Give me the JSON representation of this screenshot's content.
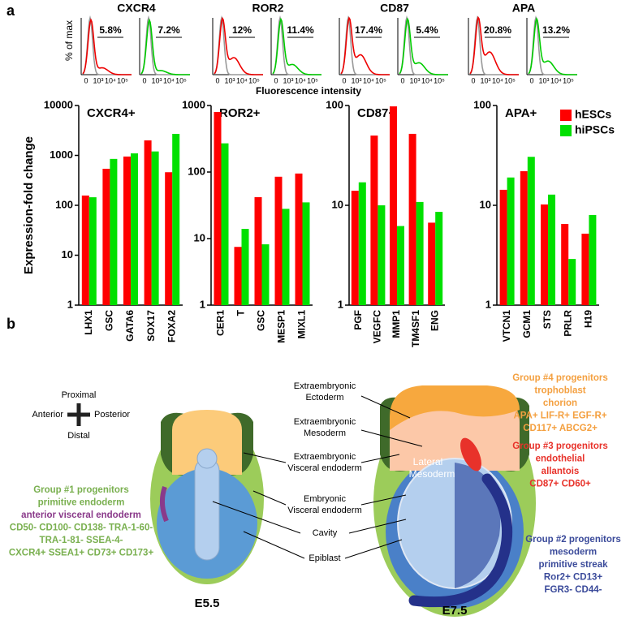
{
  "panel_a": {
    "label": "a",
    "y_label": "% of max",
    "x_label": "Fluorescence intensity",
    "x_ticks": [
      "0",
      "10³",
      "10⁴",
      "10⁵"
    ],
    "histograms": [
      {
        "title": "CXCR4",
        "gates": [
          "5.8%",
          "7.2%"
        ]
      },
      {
        "title": "ROR2",
        "gates": [
          "12%",
          "11.4%"
        ]
      },
      {
        "title": "CD87",
        "gates": [
          "17.4%",
          "5.4%"
        ]
      },
      {
        "title": "APA",
        "gates": [
          "20.8%",
          "13.2%"
        ]
      }
    ]
  },
  "chart_data": [
    {
      "type": "bar",
      "title": "CXCR4+",
      "y_label": "Expression-fold change",
      "log": true,
      "categories": [
        "LHX1",
        "GSC",
        "GATA6",
        "SOX17",
        "FOXA2"
      ],
      "series": [
        {
          "name": "hESCs",
          "color": "#ff0000",
          "values": [
            157,
            540,
            950,
            2000,
            460
          ]
        },
        {
          "name": "hiPSCs",
          "color": "#00e000",
          "values": [
            145,
            850,
            1100,
            1200,
            2700
          ]
        }
      ],
      "ylim": [
        1,
        10000
      ],
      "yticks": [
        1,
        10,
        100,
        1000,
        10000
      ]
    },
    {
      "type": "bar",
      "title": "ROR2+",
      "log": true,
      "categories": [
        "CER1",
        "T",
        "GSC",
        "MESP1",
        "MIXL1"
      ],
      "series": [
        {
          "name": "hESCs",
          "color": "#ff0000",
          "values": [
            800,
            7.5,
            42,
            85,
            95
          ]
        },
        {
          "name": "hiPSCs",
          "color": "#00e000",
          "values": [
            270,
            14,
            8.2,
            28,
            35
          ]
        }
      ],
      "ylim": [
        1,
        1000
      ],
      "yticks": [
        1,
        10,
        100,
        1000
      ]
    },
    {
      "type": "bar",
      "title": "CD87+",
      "log": true,
      "categories": [
        "PGF",
        "VEGFC",
        "MMP1",
        "TM4SF1",
        "ENG"
      ],
      "series": [
        {
          "name": "hESCs",
          "color": "#ff0000",
          "values": [
            14,
            50,
            98,
            52,
            6.7
          ]
        },
        {
          "name": "hiPSCs",
          "color": "#00e000",
          "values": [
            17,
            10,
            6.2,
            10.8,
            8.6
          ]
        }
      ],
      "ylim": [
        1,
        100
      ],
      "yticks": [
        1,
        10,
        100
      ]
    },
    {
      "type": "bar",
      "title": "APA+",
      "log": true,
      "legend": "top-right",
      "categories": [
        "VTCN1",
        "GCM1",
        "STS",
        "PRLR",
        "H19"
      ],
      "series": [
        {
          "name": "hESCs",
          "color": "#ff0000",
          "values": [
            14.3,
            22,
            10.2,
            6.5,
            5.2
          ]
        },
        {
          "name": "hiPSCs",
          "color": "#00e000",
          "values": [
            19,
            30.6,
            12.8,
            2.9,
            8
          ]
        }
      ],
      "ylim": [
        1,
        100
      ],
      "yticks": [
        1,
        10,
        100
      ]
    }
  ],
  "panel_b": {
    "label": "b",
    "compass": {
      "proximal": "Proximal",
      "distal": "Distal",
      "anterior": "Anterior",
      "posterior": "Posterior"
    },
    "structures": [
      [
        "Extraembryonic",
        "Ectoderm"
      ],
      [
        "Extraembryonic",
        "Mesoderm"
      ],
      [
        "Extraembryonic",
        "Visceral endoderm"
      ],
      [
        "Embryonic",
        "Visceral endoderm"
      ],
      [
        "Cavity"
      ],
      [
        "Epiblast"
      ]
    ],
    "lateral_mesoderm": [
      "Lateral",
      "Mesoderm"
    ],
    "stages": [
      "E5.5",
      "E7.5"
    ],
    "groups": [
      {
        "color": "#f4a040",
        "lines": [
          {
            "text": "Group #4 progenitors"
          },
          {
            "text": "trophoblast"
          },
          {
            "text": "chorion"
          },
          {
            "text": "APA+ LIF-R+ EGF-R+"
          },
          {
            "text": "CD117+ ABCG2+"
          }
        ]
      },
      {
        "color": "#e8322a",
        "lines": [
          {
            "text": "Group #3 progenitors"
          },
          {
            "text": "endothelial"
          },
          {
            "text": "allantois"
          },
          {
            "text": "CD87+ CD60+"
          }
        ]
      },
      {
        "color": "#3a4a9a",
        "lines": [
          {
            "text": "Group #2 progenitors"
          },
          {
            "text": "mesoderm"
          },
          {
            "text": "primitive streak"
          },
          {
            "text": "Ror2+ CD13+"
          },
          {
            "text": "FGR3- CD44-"
          }
        ]
      },
      {
        "color": "#7ab050",
        "lines": [
          {
            "text": "Group #1 progenitors"
          },
          {
            "text": "primitive endoderm"
          },
          {
            "text": "anterior visceral endoderm",
            "color": "#8a3a8a"
          },
          {
            "text": "CD50- CD100- CD138- TRA-1-60-"
          },
          {
            "text": "TRA-1-81- SSEA-4-"
          },
          {
            "text": "CXCR4+ SSEA1+ CD73+ CD173+"
          }
        ]
      }
    ]
  }
}
